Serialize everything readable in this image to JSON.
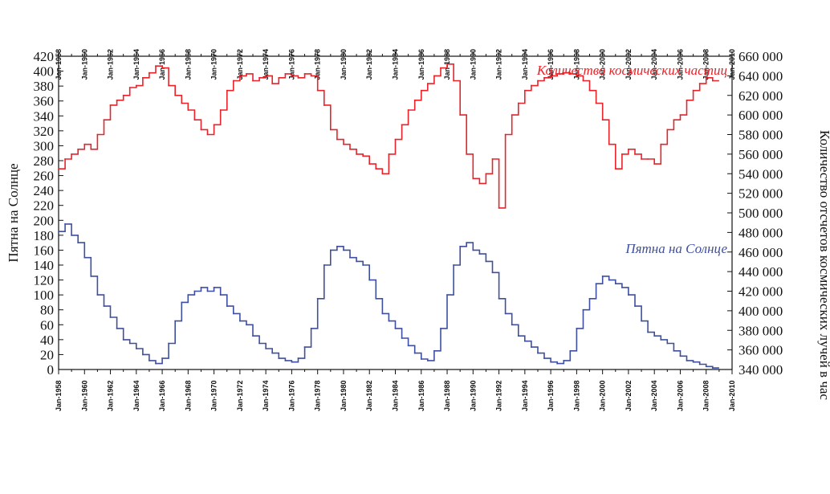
{
  "chart_data": {
    "type": "line",
    "title": "",
    "ylabel_left": "Пятна на Солнце",
    "ylabel_right": "Количество отсчетов космических лучей в час",
    "xlim": [
      1958,
      2010
    ],
    "ylim_left": [
      0,
      420
    ],
    "ylim_right": [
      340000,
      660000
    ],
    "x_tick_labels": [
      "Jan-1958",
      "Jan-1960",
      "Jan-1962",
      "Jan-1964",
      "Jan-1966",
      "Jan-1968",
      "Jan-1970",
      "Jan-1972",
      "Jan-1974",
      "Jan-1976",
      "Jan-1978",
      "Jan-1980",
      "Jan-1982",
      "Jan-1984",
      "Jan-1986",
      "Jan-1988",
      "Jan-1990",
      "Jan-1992",
      "Jan-1994",
      "Jan-1996",
      "Jan-1998",
      "Jan-2000",
      "Jan-2002",
      "Jan-2004",
      "Jan-2006",
      "Jan-2008",
      "Jan-2010"
    ],
    "y_left_ticks": [
      "0",
      "20",
      "40",
      "60",
      "80",
      "100",
      "120",
      "140",
      "160",
      "180",
      "200",
      "220",
      "240",
      "260",
      "280",
      "300",
      "320",
      "340",
      "360",
      "380",
      "400",
      "420"
    ],
    "y_right_ticks": [
      "340 000",
      "360 000",
      "380 000",
      "400 000",
      "420 000",
      "440 000",
      "460 000",
      "480 000",
      "500 000",
      "520 000",
      "540 000",
      "560 000",
      "580 000",
      "600 000",
      "620 000",
      "640 000",
      "660 000"
    ],
    "grid": false,
    "series": [
      {
        "name": "Количество космических частиц",
        "axis": "right",
        "color": "#e8232a",
        "x": [
          1958.0,
          1958.5,
          1959.0,
          1959.5,
          1960.0,
          1960.5,
          1961.0,
          1961.5,
          1962.0,
          1962.5,
          1963.0,
          1963.5,
          1964.0,
          1964.5,
          1965.0,
          1965.5,
          1966.0,
          1966.5,
          1967.0,
          1967.5,
          1968.0,
          1968.5,
          1969.0,
          1969.5,
          1970.0,
          1970.5,
          1971.0,
          1971.5,
          1972.0,
          1972.5,
          1973.0,
          1973.5,
          1974.0,
          1974.5,
          1975.0,
          1975.5,
          1976.0,
          1976.5,
          1977.0,
          1977.5,
          1978.0,
          1978.5,
          1979.0,
          1979.5,
          1980.0,
          1980.5,
          1981.0,
          1981.5,
          1982.0,
          1982.5,
          1983.0,
          1983.5,
          1984.0,
          1984.5,
          1985.0,
          1985.5,
          1986.0,
          1986.5,
          1987.0,
          1987.5,
          1988.0,
          1988.5,
          1989.0,
          1989.5,
          1990.0,
          1990.5,
          1991.0,
          1991.5,
          1992.0,
          1992.5,
          1993.0,
          1993.5,
          1994.0,
          1994.5,
          1995.0,
          1995.5,
          1996.0,
          1996.5,
          1997.0,
          1997.5,
          1998.0,
          1998.5,
          1999.0,
          1999.5,
          2000.0,
          2000.5,
          2001.0,
          2001.5,
          2002.0,
          2002.5,
          2003.0,
          2003.5,
          2004.0,
          2004.5,
          2005.0,
          2005.5,
          2006.0,
          2006.5,
          2007.0,
          2007.5,
          2008.0,
          2008.5
        ],
        "values": [
          545000,
          555000,
          560000,
          565000,
          570000,
          565000,
          580000,
          595000,
          610000,
          615000,
          620000,
          628000,
          630000,
          638000,
          643000,
          650000,
          648000,
          630000,
          620000,
          612000,
          605000,
          595000,
          585000,
          580000,
          590000,
          605000,
          625000,
          635000,
          640000,
          642000,
          635000,
          638000,
          640000,
          632000,
          638000,
          642000,
          640000,
          638000,
          642000,
          640000,
          625000,
          610000,
          585000,
          575000,
          570000,
          565000,
          560000,
          558000,
          550000,
          545000,
          540000,
          560000,
          575000,
          590000,
          605000,
          615000,
          625000,
          632000,
          640000,
          648000,
          652000,
          635000,
          600000,
          560000,
          535000,
          530000,
          540000,
          555000,
          505000,
          580000,
          600000,
          612000,
          625000,
          630000,
          635000,
          638000,
          640000,
          642000,
          643000,
          642000,
          640000,
          635000,
          625000,
          612000,
          595000,
          570000,
          545000,
          560000,
          565000,
          560000,
          555000,
          555000,
          550000,
          570000,
          585000,
          595000,
          600000,
          615000,
          625000,
          632000,
          638000,
          635000
        ]
      },
      {
        "name": "Пятна на Солнце",
        "axis": "left",
        "color": "#3e4fa0",
        "x": [
          1958.0,
          1958.5,
          1959.0,
          1959.5,
          1960.0,
          1960.5,
          1961.0,
          1961.5,
          1962.0,
          1962.5,
          1963.0,
          1963.5,
          1964.0,
          1964.5,
          1965.0,
          1965.5,
          1966.0,
          1966.5,
          1967.0,
          1967.5,
          1968.0,
          1968.5,
          1969.0,
          1969.5,
          1970.0,
          1970.5,
          1971.0,
          1971.5,
          1972.0,
          1972.5,
          1973.0,
          1973.5,
          1974.0,
          1974.5,
          1975.0,
          1975.5,
          1976.0,
          1976.5,
          1977.0,
          1977.5,
          1978.0,
          1978.5,
          1979.0,
          1979.5,
          1980.0,
          1980.5,
          1981.0,
          1981.5,
          1982.0,
          1982.5,
          1983.0,
          1983.5,
          1984.0,
          1984.5,
          1985.0,
          1985.5,
          1986.0,
          1986.5,
          1987.0,
          1987.5,
          1988.0,
          1988.5,
          1989.0,
          1989.5,
          1990.0,
          1990.5,
          1991.0,
          1991.5,
          1992.0,
          1992.5,
          1993.0,
          1993.5,
          1994.0,
          1994.5,
          1995.0,
          1995.5,
          1996.0,
          1996.5,
          1997.0,
          1997.5,
          1998.0,
          1998.5,
          1999.0,
          1999.5,
          2000.0,
          2000.5,
          2001.0,
          2001.5,
          2002.0,
          2002.5,
          2003.0,
          2003.5,
          2004.0,
          2004.5,
          2005.0,
          2005.5,
          2006.0,
          2006.5,
          2007.0,
          2007.5,
          2008.0,
          2008.5
        ],
        "values": [
          185,
          195,
          180,
          170,
          150,
          125,
          100,
          85,
          70,
          55,
          40,
          35,
          28,
          20,
          12,
          8,
          15,
          35,
          65,
          90,
          100,
          105,
          110,
          105,
          110,
          100,
          85,
          75,
          65,
          60,
          45,
          35,
          28,
          22,
          15,
          12,
          10,
          15,
          30,
          55,
          95,
          140,
          160,
          165,
          160,
          150,
          145,
          140,
          120,
          95,
          75,
          65,
          55,
          42,
          32,
          22,
          14,
          12,
          25,
          55,
          100,
          140,
          165,
          170,
          160,
          155,
          145,
          130,
          95,
          75,
          60,
          45,
          38,
          30,
          22,
          15,
          10,
          8,
          12,
          25,
          55,
          80,
          95,
          115,
          125,
          120,
          115,
          110,
          100,
          85,
          65,
          50,
          45,
          40,
          35,
          25,
          18,
          12,
          10,
          7,
          4,
          2
        ]
      }
    ]
  }
}
